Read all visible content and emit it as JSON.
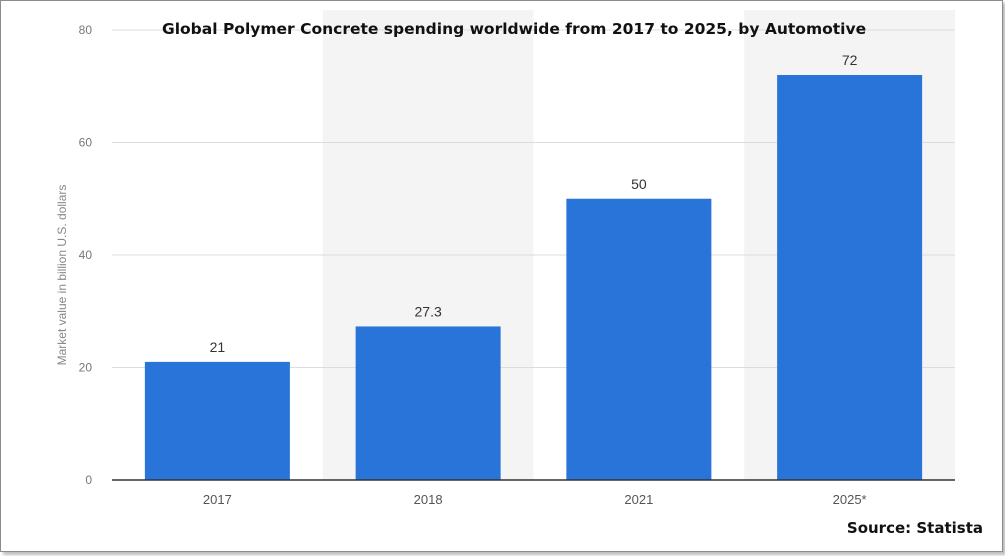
{
  "chart_data": {
    "type": "bar",
    "title": "Global Polymer Concrete spending worldwide from 2017 to 2025, by Automotive",
    "ylabel": "Market value in billion U.S. dollars",
    "xlabel": "",
    "categories": [
      "2017",
      "2018",
      "2021",
      "2025*"
    ],
    "values": [
      21,
      27.3,
      50,
      72
    ],
    "value_labels": [
      "21",
      "27.3",
      "50",
      "72"
    ],
    "ylim": [
      0,
      80
    ],
    "yticks": [
      0,
      20,
      40,
      60,
      80
    ],
    "grid": true,
    "bar_color": "#2874d8",
    "band_color": "#f4f4f4",
    "source": "Source: Statista"
  }
}
